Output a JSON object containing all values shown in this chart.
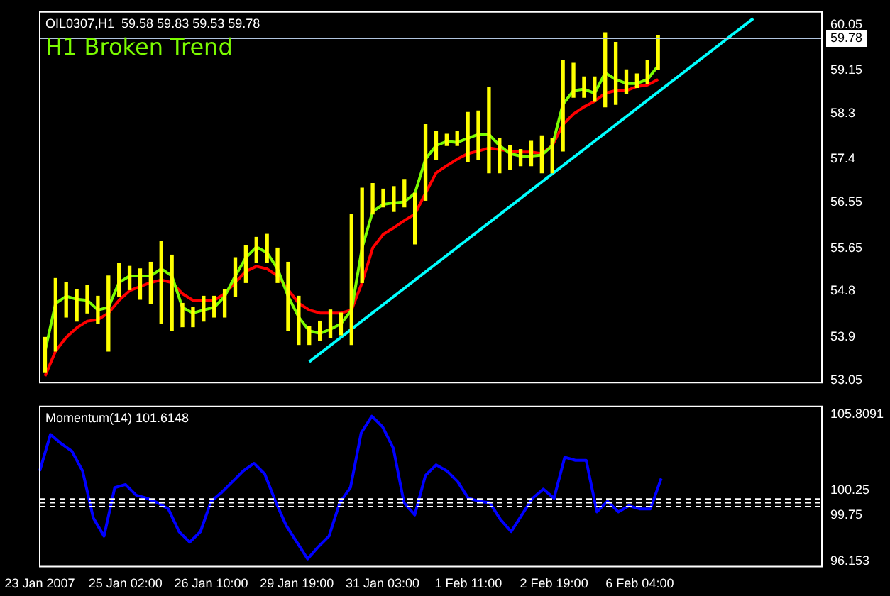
{
  "chart_data": [
    {
      "type": "bar",
      "title": "OIL0307,H1  59.58 59.83 59.53 59.78",
      "subtitle": "H1 Broken Trend",
      "categories": [
        null,
        null,
        null,
        null,
        null,
        null,
        null,
        null,
        null,
        null,
        null,
        null,
        null,
        null,
        null,
        null,
        null,
        null,
        null,
        null,
        null,
        null,
        null,
        null,
        null,
        null,
        null,
        null,
        null,
        null,
        null,
        null,
        null,
        null,
        null,
        null,
        null,
        null,
        null,
        null,
        null,
        null,
        null,
        null,
        null,
        null,
        null,
        null,
        null,
        null,
        null,
        null,
        null,
        null,
        null,
        null,
        null,
        null,
        null,
        null,
        null,
        null,
        null,
        null,
        null,
        null,
        null,
        null,
        null,
        null,
        null,
        null,
        null,
        null
      ],
      "series": [
        {
          "type": "bar",
          "color": "#ffff00",
          "base": [
            53.21,
            53.62,
            54.29,
            54.21,
            54.37,
            54.16,
            53.62,
            54.7,
            54.83,
            54.64,
            54.56,
            54.16,
            54.02,
            54.1,
            54.1,
            54.21,
            54.29,
            54.29,
            54.7,
            54.97,
            55.37,
            55.37,
            54.97,
            54.02,
            53.75,
            53.75,
            53.83,
            53.89,
            53.94,
            53.75,
            54.97,
            56.32,
            56.46,
            56.37,
            56.46,
            55.73,
            56.59,
            57.4,
            57.67,
            57.67,
            57.35,
            57.4,
            57.13,
            57.13,
            57.19,
            57.27,
            57.27,
            57.13,
            57.13,
            57.56,
            58.62,
            58.62,
            58.54,
            58.43,
            58.48,
            58.7,
            58.81,
            58.89,
            59.16,
            null,
            null,
            null,
            null,
            null,
            null,
            null,
            null,
            null,
            null,
            null,
            null,
            null,
            null,
            null
          ],
          "values": [
            0.68,
            1.43,
            0.68,
            0.62,
            0.54,
            0.54,
            1.48,
            0.65,
            0.46,
            0.6,
            0.81,
            1.62,
            1.49,
            0.46,
            0.38,
            0.49,
            0.41,
            0.54,
            0.76,
            0.73,
            0.49,
            0.55,
            0.68,
            1.35,
            0.95,
            0.35,
            0.38,
            0.54,
            0.43,
            2.57,
            1.86,
            0.6,
            0.35,
            0.49,
            0.54,
            1.0,
            1.49,
            0.54,
            0.22,
            0.27,
            0.97,
            0.95,
            1.68,
            0.68,
            0.48,
            0.32,
            0.48,
            0.73,
            0.68,
            1.79,
            0.67,
            0.4,
            0.48,
            1.46,
            1.22,
            0.46,
            0.27,
            0.46,
            0.67,
            null,
            null,
            null,
            null,
            null,
            null,
            null,
            null,
            null,
            null,
            null,
            null,
            null,
            null,
            null
          ]
        },
        {
          "type": "line",
          "color": "#7cfc00",
          "values": [
            53.62,
            54.56,
            54.7,
            54.64,
            54.62,
            54.43,
            54.48,
            54.97,
            55.1,
            55.1,
            55.1,
            55.24,
            55.1,
            54.48,
            54.37,
            54.43,
            54.48,
            54.7,
            55.1,
            55.46,
            55.67,
            55.56,
            55.24,
            54.7,
            54.29,
            54.02,
            53.97,
            54.05,
            54.16,
            54.43,
            55.65,
            56.37,
            56.51,
            56.54,
            56.56,
            56.73,
            57.4,
            57.67,
            57.75,
            57.73,
            57.81,
            57.89,
            57.89,
            57.67,
            57.51,
            57.46,
            57.46,
            57.48,
            57.67,
            58.48,
            58.75,
            58.78,
            58.7,
            59.1,
            58.97,
            58.89,
            58.89,
            58.97,
            59.24,
            null,
            null,
            null,
            null,
            null,
            null,
            null,
            null,
            null,
            null,
            null,
            null,
            null,
            null,
            null
          ]
        },
        {
          "type": "line",
          "color": "#ff0000",
          "values": [
            53.13,
            53.62,
            53.89,
            54.08,
            54.21,
            54.24,
            54.37,
            54.62,
            54.81,
            54.89,
            54.97,
            55.02,
            54.97,
            54.75,
            54.62,
            54.62,
            54.62,
            54.75,
            54.97,
            55.19,
            55.29,
            55.24,
            55.1,
            54.83,
            54.56,
            54.43,
            54.37,
            54.37,
            54.37,
            54.43,
            54.97,
            55.65,
            55.92,
            56.05,
            56.19,
            56.32,
            56.73,
            57.13,
            57.27,
            57.4,
            57.51,
            57.56,
            57.62,
            57.59,
            57.56,
            57.54,
            57.54,
            57.51,
            57.67,
            58.08,
            58.29,
            58.43,
            58.54,
            58.7,
            58.75,
            58.75,
            58.83,
            58.86,
            58.97,
            null,
            null,
            null,
            null,
            null,
            null,
            null,
            null,
            null,
            null,
            null,
            null,
            null,
            null,
            null
          ]
        },
        {
          "type": "line",
          "color": "#00ffff",
          "values": [
            null,
            null,
            null,
            null,
            null,
            null,
            null,
            null,
            null,
            null,
            null,
            null,
            null,
            null,
            null,
            null,
            null,
            null,
            null,
            null,
            null,
            null,
            null,
            null,
            null,
            53.41,
            null,
            null,
            null,
            null,
            null,
            null,
            null,
            null,
            null,
            null,
            null,
            null,
            null,
            null,
            null,
            null,
            null,
            null,
            null,
            null,
            null,
            null,
            null,
            null,
            null,
            null,
            null,
            null,
            null,
            null,
            null,
            null,
            null,
            null,
            null,
            null,
            null,
            null,
            null,
            null,
            null,
            60.17,
            null,
            null,
            null,
            null,
            null,
            null
          ]
        }
      ],
      "ylim": [
        53.0,
        60.3
      ],
      "yticks": [
        53.05,
        53.9,
        54.8,
        55.65,
        56.55,
        57.4,
        58.3,
        59.15,
        60.05
      ],
      "ref_lines": [
        {
          "axis": "y",
          "value": 59.78,
          "label": "59.78",
          "color": "#b0c4de"
        }
      ],
      "tick_labels": "y"
    },
    {
      "type": "line",
      "title": "Momentum(14) 101.6148",
      "categories": [
        "23 Jan 2007",
        null,
        null,
        null,
        null,
        null,
        null,
        null,
        "25 Jan 02:00",
        null,
        null,
        null,
        null,
        null,
        null,
        null,
        "26 Jan 10:00",
        null,
        null,
        null,
        null,
        null,
        null,
        null,
        "29 Jan 19:00",
        null,
        null,
        null,
        null,
        null,
        null,
        null,
        "31 Jan 03:00",
        null,
        null,
        null,
        null,
        null,
        null,
        null,
        "1 Feb 11:00",
        null,
        null,
        null,
        null,
        null,
        null,
        null,
        "2 Feb 19:00",
        null,
        null,
        null,
        null,
        null,
        null,
        null,
        "6 Feb 04:00",
        null,
        null,
        null,
        null,
        null,
        null,
        null,
        null,
        null,
        null,
        null,
        null,
        null,
        null,
        null,
        null,
        null
      ],
      "series": [
        {
          "color": "#0000ff",
          "values": [
            102.1,
            104.5,
            103.9,
            103.4,
            102.1,
            99.0,
            97.8,
            101.0,
            101.2,
            100.5,
            100.3,
            100.0,
            99.6,
            98.1,
            97.4,
            98.1,
            100.1,
            100.7,
            101.4,
            102.1,
            102.6,
            101.9,
            100.1,
            98.5,
            97.4,
            96.3,
            97.1,
            97.8,
            100.0,
            101.0,
            104.6,
            105.7,
            105.0,
            103.6,
            100.0,
            99.2,
            101.8,
            102.5,
            102.1,
            101.4,
            100.3,
            100.1,
            100.0,
            98.9,
            98.1,
            99.2,
            100.3,
            100.9,
            100.3,
            103.0,
            102.8,
            102.8,
            99.4,
            100.1,
            99.4,
            99.8,
            99.6,
            99.6,
            101.6,
            null,
            null,
            null,
            null,
            null,
            null,
            null,
            null,
            null,
            null,
            null,
            null,
            null,
            null,
            null
          ]
        }
      ],
      "ylim": [
        95.8,
        106.35
      ],
      "yticks": [
        96.153,
        105.8091
      ],
      "ref_lines": [
        {
          "axis": "y",
          "value": 100.25,
          "label": "100.25",
          "color": "#ffffff",
          "line_style": "dashed"
        },
        {
          "axis": "y",
          "value": 100,
          "color": "#ffffff",
          "line_style": "dashed"
        },
        {
          "axis": "y",
          "value": 99.75,
          "label": "99.75",
          "color": "#ffffff",
          "line_style": "dashed"
        }
      ]
    }
  ]
}
